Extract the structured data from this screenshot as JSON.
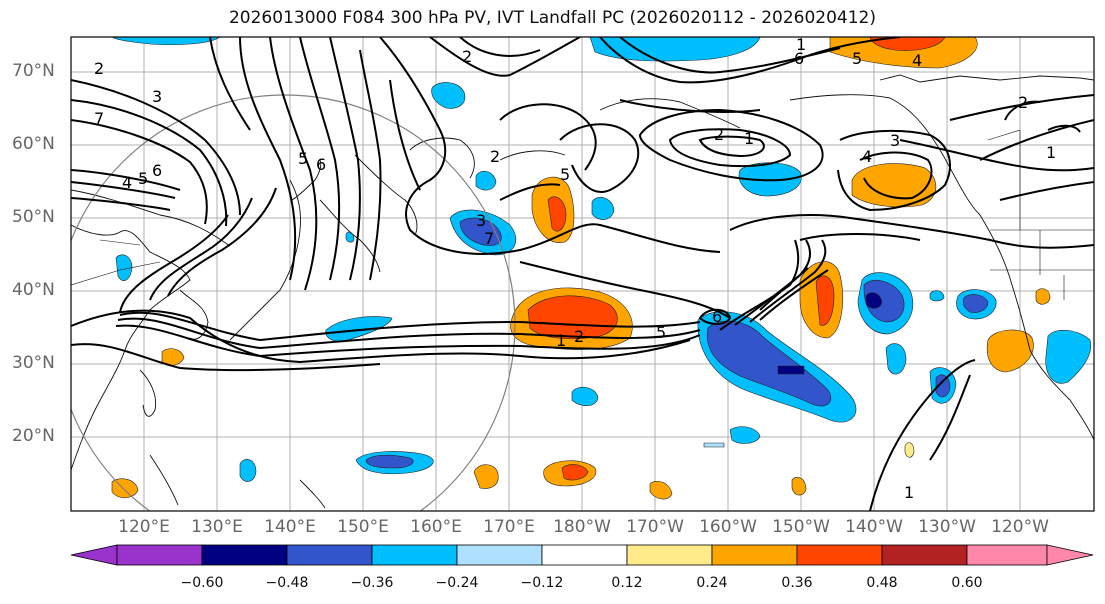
{
  "title": "2026013000 F084 300 hPa PV, IVT Landfall PC (2026020112 - 2026020412)",
  "lat_labels": [
    "70°N",
    "60°N",
    "50°N",
    "40°N",
    "30°N",
    "20°N"
  ],
  "lon_labels": [
    "120°E",
    "130°E",
    "140°E",
    "150°E",
    "160°E",
    "170°E",
    "180°W",
    "170°W",
    "160°W",
    "150°W",
    "140°W",
    "130°W",
    "120°W"
  ],
  "contour_labels": [
    "2",
    "3",
    "7",
    "6",
    "4",
    "5",
    "6",
    "5",
    "2",
    "2",
    "3",
    "7",
    "5",
    "1",
    "2",
    "5",
    "6",
    "1",
    "2",
    "1",
    "6",
    "5",
    "4",
    "3",
    "4",
    "2",
    "1",
    "1"
  ],
  "colorbar": {
    "labels": [
      "−0.60",
      "−0.48",
      "−0.36",
      "−0.24",
      "−0.12",
      "0.12",
      "0.24",
      "0.36",
      "0.48",
      "0.60"
    ],
    "colors": [
      "#9933cc",
      "#000080",
      "#3355cc",
      "#00bfff",
      "#b0e0ff",
      "#ffffff",
      "#ffeb8a",
      "#ffa500",
      "#ff4500",
      "#b22222",
      "#ff88aa"
    ]
  },
  "chart_data": {
    "type": "heatmap",
    "title": "2026013000 F084 300 hPa PV, IVT Landfall PC (2026020112 - 2026020412)",
    "color_scale_bounds": [
      -0.6,
      -0.48,
      -0.36,
      -0.24,
      -0.12,
      0.12,
      0.24,
      0.36,
      0.48,
      0.6
    ],
    "lat_range": [
      10,
      75
    ],
    "lon_range_east": [
      110,
      250
    ],
    "contour_values": [
      1,
      2,
      3,
      4,
      5,
      6,
      7
    ]
  }
}
